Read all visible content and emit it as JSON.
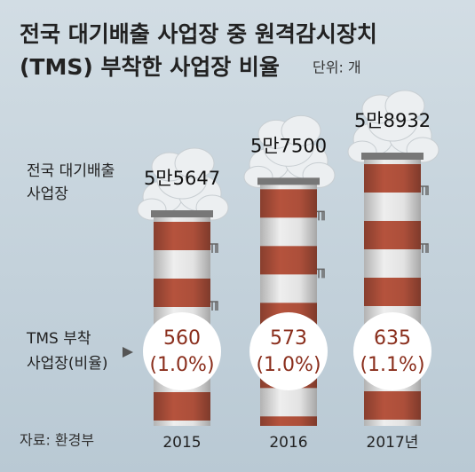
{
  "chart_data": {
    "type": "bar",
    "title": [
      "전국 대기배출 사업장 중 원격감시장치",
      "(TMS) 부착한 사업장 비율"
    ],
    "unit": "단위: 개",
    "source": "자료: 환경부",
    "categories": [
      "2015",
      "2016",
      "2017년"
    ],
    "series": [
      {
        "name": [
          "전국 대기배출",
          "사업장"
        ],
        "color": "#b5533d",
        "values": [
          55647,
          57500,
          58932
        ],
        "value_labels": [
          "5만5647",
          "5만7500",
          "5만8932"
        ]
      },
      {
        "name": [
          "TMS 부착",
          "사업장(비율)"
        ],
        "color": "#8a2e1c",
        "values": [
          560,
          573,
          635
        ],
        "ratio": [
          1.0,
          1.0,
          1.1
        ],
        "ratio_labels": [
          "(1.0%)",
          "(1.0%)",
          "(1.1%)"
        ]
      }
    ]
  }
}
